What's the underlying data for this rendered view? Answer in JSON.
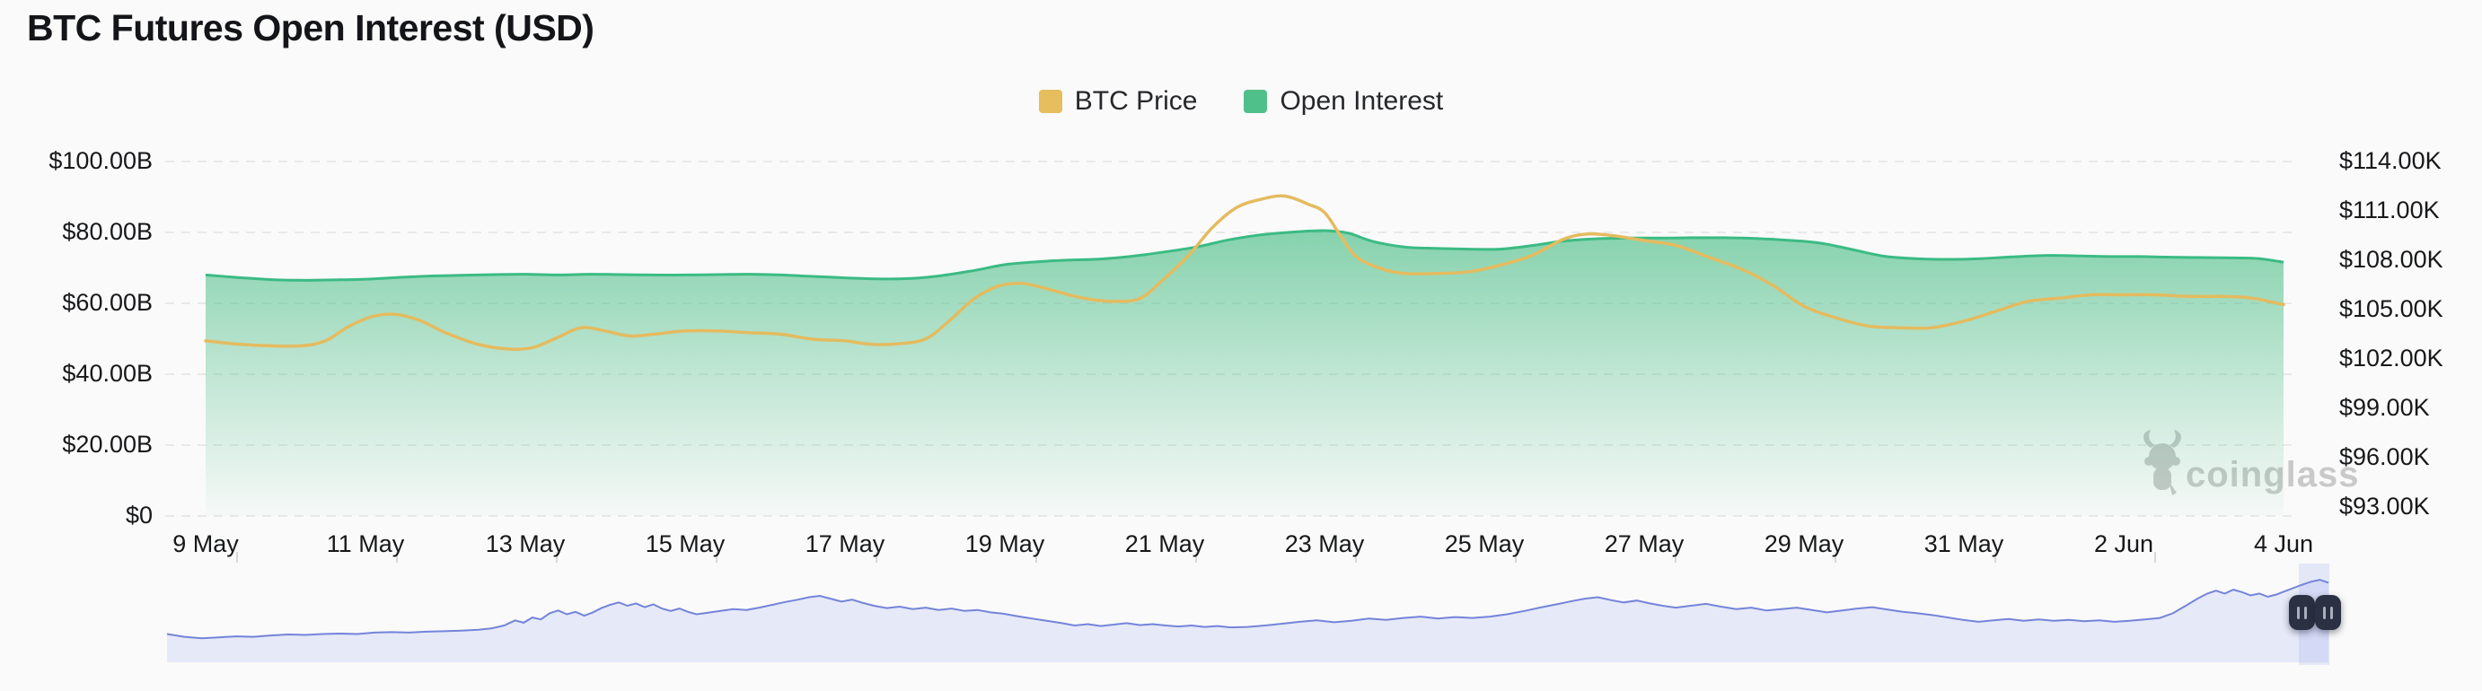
{
  "title": "BTC Futures Open Interest (USD)",
  "legend": {
    "items": [
      {
        "label": "BTC Price",
        "color": "#E6BE5D"
      },
      {
        "label": "Open Interest",
        "color": "#50C08A"
      }
    ]
  },
  "watermark": {
    "brand": "coinglass",
    "icon": "coinglass-bull-logo",
    "color": "#c9c9c9"
  },
  "chart_data": {
    "type": "line",
    "title": "BTC Futures Open Interest (USD)",
    "grid": "horizontal-dashed",
    "legend_position": "top-center",
    "x_unit": "days since 9 May",
    "x_range_days": 26,
    "x_tick_labels": [
      "9 May",
      "11 May",
      "13 May",
      "15 May",
      "17 May",
      "19 May",
      "21 May",
      "23 May",
      "25 May",
      "27 May",
      "29 May",
      "31 May",
      "2 Jun",
      "4 Jun"
    ],
    "left_axis": {
      "unit": "USD billions",
      "min": 0,
      "max": 100,
      "tick_labels": [
        "$100.00B",
        "$80.00B",
        "$60.00B",
        "$40.00B",
        "$20.00B",
        "$0"
      ]
    },
    "right_axis": {
      "unit": "USD thousands",
      "min": 93,
      "max": 114,
      "tick_labels": [
        "$114.00K",
        "$111.00K",
        "$108.00K",
        "$105.00K",
        "$102.00K",
        "$99.00K",
        "$96.00K",
        "$93.00K"
      ]
    },
    "series": [
      {
        "name": "Open Interest",
        "type": "area",
        "axis": "left",
        "unit": "USD billions",
        "line_color": "#3BBB83",
        "fill_color": "#3DB97D",
        "points": [
          [
            0,
            68.0
          ],
          [
            0.4,
            67.3
          ],
          [
            0.8,
            66.7
          ],
          [
            1.2,
            66.5
          ],
          [
            1.6,
            66.6
          ],
          [
            2,
            66.8
          ],
          [
            2.4,
            67.3
          ],
          [
            2.8,
            67.7
          ],
          [
            3.2,
            67.9
          ],
          [
            3.6,
            68.1
          ],
          [
            4,
            68.2
          ],
          [
            4.4,
            68.0
          ],
          [
            4.8,
            68.2
          ],
          [
            5.2,
            68.1
          ],
          [
            5.6,
            68.0
          ],
          [
            6,
            68.0
          ],
          [
            6.4,
            68.1
          ],
          [
            6.8,
            68.2
          ],
          [
            7.2,
            68.0
          ],
          [
            7.6,
            67.6
          ],
          [
            8,
            67.2
          ],
          [
            8.4,
            66.9
          ],
          [
            8.8,
            67.0
          ],
          [
            9.2,
            67.8
          ],
          [
            9.6,
            69.2
          ],
          [
            10,
            70.9
          ],
          [
            10.4,
            71.7
          ],
          [
            10.8,
            72.2
          ],
          [
            11.2,
            72.5
          ],
          [
            11.6,
            73.3
          ],
          [
            12,
            74.5
          ],
          [
            12.4,
            75.9
          ],
          [
            12.8,
            77.9
          ],
          [
            13.2,
            79.3
          ],
          [
            13.6,
            80.1
          ],
          [
            14,
            80.5
          ],
          [
            14.3,
            79.8
          ],
          [
            14.6,
            77.5
          ],
          [
            15,
            75.9
          ],
          [
            15.4,
            75.5
          ],
          [
            15.8,
            75.3
          ],
          [
            16.2,
            75.3
          ],
          [
            16.6,
            76.3
          ],
          [
            17,
            77.6
          ],
          [
            17.4,
            78.2
          ],
          [
            17.8,
            78.4
          ],
          [
            18.2,
            78.4
          ],
          [
            18.6,
            78.5
          ],
          [
            19,
            78.5
          ],
          [
            19.4,
            78.3
          ],
          [
            19.8,
            77.8
          ],
          [
            20.2,
            77.0
          ],
          [
            20.6,
            75.2
          ],
          [
            21,
            73.3
          ],
          [
            21.4,
            72.6
          ],
          [
            21.8,
            72.4
          ],
          [
            22.2,
            72.6
          ],
          [
            22.6,
            73.1
          ],
          [
            23,
            73.5
          ],
          [
            23.4,
            73.4
          ],
          [
            23.8,
            73.2
          ],
          [
            24.2,
            73.2
          ],
          [
            24.6,
            73.0
          ],
          [
            25,
            72.9
          ],
          [
            25.4,
            72.8
          ],
          [
            25.7,
            72.6
          ],
          [
            26,
            71.6
          ]
        ]
      },
      {
        "name": "BTC Price",
        "type": "line",
        "axis": "right",
        "unit": "USD thousands",
        "line_color": "#E4BB5F",
        "points": [
          [
            0,
            103.1
          ],
          [
            0.4,
            102.9
          ],
          [
            0.8,
            102.8
          ],
          [
            1.2,
            102.8
          ],
          [
            1.5,
            103.1
          ],
          [
            1.8,
            104.0
          ],
          [
            2.1,
            104.6
          ],
          [
            2.4,
            104.7
          ],
          [
            2.7,
            104.3
          ],
          [
            3,
            103.6
          ],
          [
            3.4,
            102.9
          ],
          [
            3.8,
            102.6
          ],
          [
            4.1,
            102.7
          ],
          [
            4.4,
            103.3
          ],
          [
            4.7,
            103.9
          ],
          [
            5,
            103.7
          ],
          [
            5.3,
            103.4
          ],
          [
            5.6,
            103.5
          ],
          [
            6,
            103.7
          ],
          [
            6.4,
            103.7
          ],
          [
            6.8,
            103.6
          ],
          [
            7.2,
            103.5
          ],
          [
            7.6,
            103.2
          ],
          [
            8,
            103.1
          ],
          [
            8.3,
            102.9
          ],
          [
            8.6,
            102.9
          ],
          [
            9,
            103.2
          ],
          [
            9.3,
            104.3
          ],
          [
            9.6,
            105.6
          ],
          [
            9.9,
            106.4
          ],
          [
            10.2,
            106.6
          ],
          [
            10.5,
            106.3
          ],
          [
            10.8,
            105.9
          ],
          [
            11.1,
            105.6
          ],
          [
            11.4,
            105.5
          ],
          [
            11.7,
            105.7
          ],
          [
            12,
            106.9
          ],
          [
            12.3,
            108.3
          ],
          [
            12.6,
            110.0
          ],
          [
            12.9,
            111.2
          ],
          [
            13.2,
            111.7
          ],
          [
            13.5,
            111.9
          ],
          [
            13.8,
            111.4
          ],
          [
            14,
            110.9
          ],
          [
            14.2,
            109.5
          ],
          [
            14.4,
            108.2
          ],
          [
            14.7,
            107.5
          ],
          [
            15,
            107.2
          ],
          [
            15.4,
            107.2
          ],
          [
            15.8,
            107.3
          ],
          [
            16.2,
            107.7
          ],
          [
            16.6,
            108.3
          ],
          [
            17,
            109.3
          ],
          [
            17.3,
            109.6
          ],
          [
            17.6,
            109.5
          ],
          [
            18,
            109.2
          ],
          [
            18.4,
            108.9
          ],
          [
            18.8,
            108.2
          ],
          [
            19.2,
            107.5
          ],
          [
            19.6,
            106.5
          ],
          [
            20,
            105.2
          ],
          [
            20.4,
            104.5
          ],
          [
            20.8,
            104.0
          ],
          [
            21.2,
            103.9
          ],
          [
            21.6,
            103.9
          ],
          [
            22,
            104.3
          ],
          [
            22.4,
            104.9
          ],
          [
            22.8,
            105.5
          ],
          [
            23.2,
            105.7
          ],
          [
            23.6,
            105.9
          ],
          [
            24,
            105.9
          ],
          [
            24.4,
            105.9
          ],
          [
            24.8,
            105.8
          ],
          [
            25.2,
            105.8
          ],
          [
            25.6,
            105.7
          ],
          [
            26,
            105.3
          ]
        ]
      }
    ],
    "navigator": {
      "type": "area",
      "normalized": true,
      "line_color": "#7484D9",
      "fill_color": "#E6E9F8",
      "points": [
        [
          0,
          0.3
        ],
        [
          0.008,
          0.27
        ],
        [
          0.016,
          0.255
        ],
        [
          0.024,
          0.265
        ],
        [
          0.032,
          0.275
        ],
        [
          0.04,
          0.27
        ],
        [
          0.048,
          0.285
        ],
        [
          0.056,
          0.295
        ],
        [
          0.064,
          0.29
        ],
        [
          0.072,
          0.3
        ],
        [
          0.08,
          0.305
        ],
        [
          0.088,
          0.3
        ],
        [
          0.096,
          0.315
        ],
        [
          0.104,
          0.32
        ],
        [
          0.112,
          0.315
        ],
        [
          0.12,
          0.325
        ],
        [
          0.128,
          0.33
        ],
        [
          0.136,
          0.335
        ],
        [
          0.144,
          0.345
        ],
        [
          0.15,
          0.36
        ],
        [
          0.156,
          0.39
        ],
        [
          0.161,
          0.445
        ],
        [
          0.165,
          0.42
        ],
        [
          0.169,
          0.475
        ],
        [
          0.173,
          0.455
        ],
        [
          0.177,
          0.52
        ],
        [
          0.181,
          0.55
        ],
        [
          0.185,
          0.51
        ],
        [
          0.189,
          0.535
        ],
        [
          0.193,
          0.495
        ],
        [
          0.197,
          0.53
        ],
        [
          0.201,
          0.575
        ],
        [
          0.205,
          0.61
        ],
        [
          0.209,
          0.635
        ],
        [
          0.213,
          0.6
        ],
        [
          0.217,
          0.625
        ],
        [
          0.221,
          0.585
        ],
        [
          0.225,
          0.615
        ],
        [
          0.229,
          0.57
        ],
        [
          0.233,
          0.545
        ],
        [
          0.237,
          0.57
        ],
        [
          0.241,
          0.535
        ],
        [
          0.245,
          0.51
        ],
        [
          0.25,
          0.525
        ],
        [
          0.256,
          0.545
        ],
        [
          0.262,
          0.565
        ],
        [
          0.268,
          0.555
        ],
        [
          0.274,
          0.58
        ],
        [
          0.28,
          0.61
        ],
        [
          0.286,
          0.64
        ],
        [
          0.292,
          0.665
        ],
        [
          0.297,
          0.69
        ],
        [
          0.302,
          0.705
        ],
        [
          0.307,
          0.675
        ],
        [
          0.312,
          0.645
        ],
        [
          0.317,
          0.665
        ],
        [
          0.322,
          0.63
        ],
        [
          0.327,
          0.6
        ],
        [
          0.333,
          0.575
        ],
        [
          0.339,
          0.59
        ],
        [
          0.345,
          0.565
        ],
        [
          0.351,
          0.58
        ],
        [
          0.357,
          0.555
        ],
        [
          0.363,
          0.57
        ],
        [
          0.369,
          0.545
        ],
        [
          0.375,
          0.555
        ],
        [
          0.381,
          0.53
        ],
        [
          0.387,
          0.515
        ],
        [
          0.393,
          0.49
        ],
        [
          0.4,
          0.465
        ],
        [
          0.407,
          0.44
        ],
        [
          0.414,
          0.415
        ],
        [
          0.42,
          0.39
        ],
        [
          0.426,
          0.405
        ],
        [
          0.432,
          0.385
        ],
        [
          0.438,
          0.4
        ],
        [
          0.444,
          0.415
        ],
        [
          0.45,
          0.395
        ],
        [
          0.456,
          0.405
        ],
        [
          0.462,
          0.39
        ],
        [
          0.468,
          0.38
        ],
        [
          0.474,
          0.39
        ],
        [
          0.48,
          0.375
        ],
        [
          0.486,
          0.385
        ],
        [
          0.492,
          0.37
        ],
        [
          0.5,
          0.375
        ],
        [
          0.508,
          0.39
        ],
        [
          0.516,
          0.41
        ],
        [
          0.524,
          0.43
        ],
        [
          0.532,
          0.445
        ],
        [
          0.54,
          0.425
        ],
        [
          0.548,
          0.44
        ],
        [
          0.556,
          0.465
        ],
        [
          0.564,
          0.45
        ],
        [
          0.572,
          0.47
        ],
        [
          0.58,
          0.485
        ],
        [
          0.588,
          0.465
        ],
        [
          0.596,
          0.48
        ],
        [
          0.604,
          0.47
        ],
        [
          0.612,
          0.485
        ],
        [
          0.62,
          0.51
        ],
        [
          0.628,
          0.545
        ],
        [
          0.636,
          0.585
        ],
        [
          0.644,
          0.62
        ],
        [
          0.65,
          0.65
        ],
        [
          0.656,
          0.675
        ],
        [
          0.662,
          0.69
        ],
        [
          0.668,
          0.66
        ],
        [
          0.674,
          0.635
        ],
        [
          0.68,
          0.655
        ],
        [
          0.686,
          0.625
        ],
        [
          0.692,
          0.6
        ],
        [
          0.698,
          0.58
        ],
        [
          0.705,
          0.6
        ],
        [
          0.712,
          0.62
        ],
        [
          0.719,
          0.59
        ],
        [
          0.726,
          0.565
        ],
        [
          0.733,
          0.58
        ],
        [
          0.74,
          0.55
        ],
        [
          0.747,
          0.565
        ],
        [
          0.754,
          0.58
        ],
        [
          0.761,
          0.555
        ],
        [
          0.768,
          0.53
        ],
        [
          0.775,
          0.55
        ],
        [
          0.782,
          0.57
        ],
        [
          0.789,
          0.585
        ],
        [
          0.796,
          0.56
        ],
        [
          0.803,
          0.535
        ],
        [
          0.81,
          0.52
        ],
        [
          0.817,
          0.5
        ],
        [
          0.824,
          0.475
        ],
        [
          0.831,
          0.45
        ],
        [
          0.838,
          0.43
        ],
        [
          0.845,
          0.445
        ],
        [
          0.852,
          0.46
        ],
        [
          0.859,
          0.44
        ],
        [
          0.866,
          0.455
        ],
        [
          0.873,
          0.44
        ],
        [
          0.88,
          0.45
        ],
        [
          0.887,
          0.435
        ],
        [
          0.894,
          0.445
        ],
        [
          0.901,
          0.43
        ],
        [
          0.908,
          0.44
        ],
        [
          0.915,
          0.455
        ],
        [
          0.922,
          0.47
        ],
        [
          0.928,
          0.52
        ],
        [
          0.934,
          0.6
        ],
        [
          0.939,
          0.67
        ],
        [
          0.944,
          0.73
        ],
        [
          0.948,
          0.76
        ],
        [
          0.952,
          0.73
        ],
        [
          0.956,
          0.77
        ],
        [
          0.96,
          0.745
        ],
        [
          0.964,
          0.71
        ],
        [
          0.968,
          0.73
        ],
        [
          0.972,
          0.695
        ],
        [
          0.976,
          0.72
        ],
        [
          0.98,
          0.755
        ],
        [
          0.984,
          0.79
        ],
        [
          0.988,
          0.825
        ],
        [
          0.992,
          0.855
        ],
        [
          0.996,
          0.875
        ],
        [
          1,
          0.845
        ]
      ]
    }
  }
}
